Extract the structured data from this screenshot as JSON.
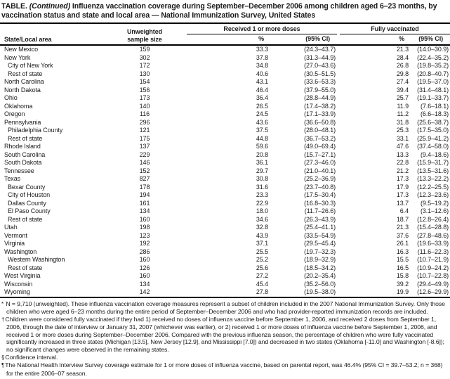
{
  "title": {
    "prefix": "TABLE.",
    "continued": "(Continued)",
    "text": "Influenza vaccination coverage during September–December 2006 among children aged 6–23 months, by vaccination status and state and local area — National Immunization Survey, United States"
  },
  "table": {
    "col_state": "State/Local area",
    "col_sample_line1": "Unweighted",
    "col_sample_line2": "sample size",
    "group_received": "Received 1 or more doses",
    "group_fully": "Fully vaccinated",
    "col_pct": "%",
    "col_ci": "(95% CI)",
    "rows": [
      {
        "area": "New Mexico",
        "indent": false,
        "n": "159",
        "pct1": "33.3",
        "ci1": "(24.3–43.7)",
        "pct2": "21.3",
        "ci2": "(14.0–30.9)"
      },
      {
        "area": "New York",
        "indent": false,
        "n": "302",
        "pct1": "37.8",
        "ci1": "(31.3–44.9)",
        "pct2": "28.4",
        "ci2": "(22.4–35.2)"
      },
      {
        "area": "City of New York",
        "indent": true,
        "n": "172",
        "pct1": "34.8",
        "ci1": "(27.0–43.6)",
        "pct2": "26.8",
        "ci2": "(19.8–35.2)"
      },
      {
        "area": "Rest of state",
        "indent": true,
        "n": "130",
        "pct1": "40.6",
        "ci1": "(30.5–51.5)",
        "pct2": "29.8",
        "ci2": "(20.8–40.7)"
      },
      {
        "area": "North Carolina",
        "indent": false,
        "n": "154",
        "pct1": "43.1",
        "ci1": "(33.6–53.3)",
        "pct2": "27.4",
        "ci2": "(19.5–37.0)"
      },
      {
        "area": "North Dakota",
        "indent": false,
        "n": "156",
        "pct1": "46.4",
        "ci1": "(37.9–55.0)",
        "pct2": "39.4",
        "ci2": "(31.4–48.1)"
      },
      {
        "area": "Ohio",
        "indent": false,
        "n": "173",
        "pct1": "36.4",
        "ci1": "(28.8–44.9)",
        "pct2": "25.7",
        "ci2": "(19.1–33.7)"
      },
      {
        "area": "Oklahoma",
        "indent": false,
        "n": "140",
        "pct1": "26.5",
        "ci1": "(17.4–38.2)",
        "pct2": "11.9",
        "ci2": "(7.6–18.1)"
      },
      {
        "area": "Oregon",
        "indent": false,
        "n": "116",
        "pct1": "24.5",
        "ci1": "(17.1–33.9)",
        "pct2": "11.2",
        "ci2": "(6.6–18.3)"
      },
      {
        "area": "Pennsylvania",
        "indent": false,
        "n": "296",
        "pct1": "43.6",
        "ci1": "(36.6–50.8)",
        "pct2": "31.8",
        "ci2": "(25.6–38.7)"
      },
      {
        "area": "Philadelphia County",
        "indent": true,
        "n": "121",
        "pct1": "37.5",
        "ci1": "(28.0–48.1)",
        "pct2": "25.3",
        "ci2": "(17.5–35.0)"
      },
      {
        "area": "Rest of state",
        "indent": true,
        "n": "175",
        "pct1": "44.8",
        "ci1": "(36.7–53.2)",
        "pct2": "33.1",
        "ci2": "(25.9–41.2)"
      },
      {
        "area": "Rhode Island",
        "indent": false,
        "n": "137",
        "pct1": "59.6",
        "ci1": "(49.0–69.4)",
        "pct2": "47.6",
        "ci2": "(37.4–58.0)"
      },
      {
        "area": "South Carolina",
        "indent": false,
        "n": "229",
        "pct1": "20.8",
        "ci1": "(15.7–27.1)",
        "pct2": "13.3",
        "ci2": "(9.4–18.6)"
      },
      {
        "area": "South Dakota",
        "indent": false,
        "n": "146",
        "pct1": "36.1",
        "ci1": "(27.3–46.0)",
        "pct2": "22.8",
        "ci2": "(15.9–31.7)"
      },
      {
        "area": "Tennessee",
        "indent": false,
        "n": "152",
        "pct1": "29.7",
        "ci1": "(21.0–40.1)",
        "pct2": "21.2",
        "ci2": "(13.5–31.6)"
      },
      {
        "area": "Texas",
        "indent": false,
        "n": "827",
        "pct1": "30.8",
        "ci1": "(25.2–36.9)",
        "pct2": "17.3",
        "ci2": "(13.3–22.2)"
      },
      {
        "area": "Bexar County",
        "indent": true,
        "n": "178",
        "pct1": "31.6",
        "ci1": "(23.7–40.8)",
        "pct2": "17.9",
        "ci2": "(12.2–25.5)"
      },
      {
        "area": "City of Houston",
        "indent": true,
        "n": "194",
        "pct1": "23.3",
        "ci1": "(17.5–30.4)",
        "pct2": "17.3",
        "ci2": "(12.3–23.6)"
      },
      {
        "area": "Dallas County",
        "indent": true,
        "n": "161",
        "pct1": "22.9",
        "ci1": "(16.8–30.3)",
        "pct2": "13.7",
        "ci2": "(9.5–19.2)"
      },
      {
        "area": "El Paso County",
        "indent": true,
        "n": "134",
        "pct1": "18.0",
        "ci1": "(11.7–26.6)",
        "pct2": "6.4",
        "ci2": "(3.1–12.6)"
      },
      {
        "area": "Rest of state",
        "indent": true,
        "n": "160",
        "pct1": "34.6",
        "ci1": "(26.3–43.9)",
        "pct2": "18.7",
        "ci2": "(12.8–26.4)"
      },
      {
        "area": "Utah",
        "indent": false,
        "n": "198",
        "pct1": "32.8",
        "ci1": "(25.4–41.1)",
        "pct2": "21.3",
        "ci2": "(15.4–28.8)"
      },
      {
        "area": "Vermont",
        "indent": false,
        "n": "123",
        "pct1": "43.9",
        "ci1": "(33.5–54.9)",
        "pct2": "37.6",
        "ci2": "(27.8–48.6)"
      },
      {
        "area": "Virginia",
        "indent": false,
        "n": "192",
        "pct1": "37.1",
        "ci1": "(29.5–45.4)",
        "pct2": "26.1",
        "ci2": "(19.6–33.9)"
      },
      {
        "area": "Washington",
        "indent": false,
        "n": "286",
        "pct1": "25.5",
        "ci1": "(19.7–32.3)",
        "pct2": "16.3",
        "ci2": "(11.6–22.3)"
      },
      {
        "area": "Western Washington",
        "indent": true,
        "n": "160",
        "pct1": "25.2",
        "ci1": "(18.9–32.9)",
        "pct2": "15.5",
        "ci2": "(10.7–21.9)"
      },
      {
        "area": "Rest of state",
        "indent": true,
        "n": "126",
        "pct1": "25.6",
        "ci1": "(18.5–34.2)",
        "pct2": "16.5",
        "ci2": "(10.9–24.2)"
      },
      {
        "area": "West Virginia",
        "indent": false,
        "n": "160",
        "pct1": "27.2",
        "ci1": "(20.2–35.4)",
        "pct2": "15.8",
        "ci2": "(10.7–22.8)"
      },
      {
        "area": "Wisconsin",
        "indent": false,
        "n": "134",
        "pct1": "45.4",
        "ci1": "(35.2–56.0)",
        "pct2": "39.2",
        "ci2": "(29.4–49.9)"
      },
      {
        "area": "Wyoming",
        "indent": false,
        "n": "142",
        "pct1": "27.8",
        "ci1": "(19.5–38.0)",
        "pct2": "19.9",
        "ci2": "(12.6–29.9)"
      }
    ]
  },
  "footnotes": [
    {
      "sym": "*",
      "text": " N = 9,710 (unweighted). These influenza vaccination coverage measures represent a subset of children included in the 2007 National Immunization Survey. Only those children who were aged 6–23 months during the entire period of September–December 2006 and who had provider-reported immunization records are included."
    },
    {
      "sym": "†",
      "text": "Children were considered fully vaccinated if they had 1) received no doses of influenza vaccine before September 1, 2006, and received 2 doses from September 1, 2006, through the date of interview or January 31, 2007 (whichever was earlier), or 2) received 1 or more doses of influenza vaccine before September 1, 2006, and received 1 or more doses during September–December 2006. Compared with the previous influenza season, the percentage of children who were fully vaccinated significantly increased in three states (Michigan [13.5], New Jersey [12.9], and Mississippi [7.0]) and decreased in two states (Oklahoma [-11.0] and Washington [-8.6]); no significant changes were observed in the remaining states."
    },
    {
      "sym": "§",
      "text": "Confidence interval."
    },
    {
      "sym": "¶",
      "text": "The National Health Interview Survey coverage estimate for 1 or more doses of influenza vaccine, based on parental report, was 46.4% (95% CI = 39.7–53.2; n = 368) for the entire 2006–07 season."
    }
  ]
}
